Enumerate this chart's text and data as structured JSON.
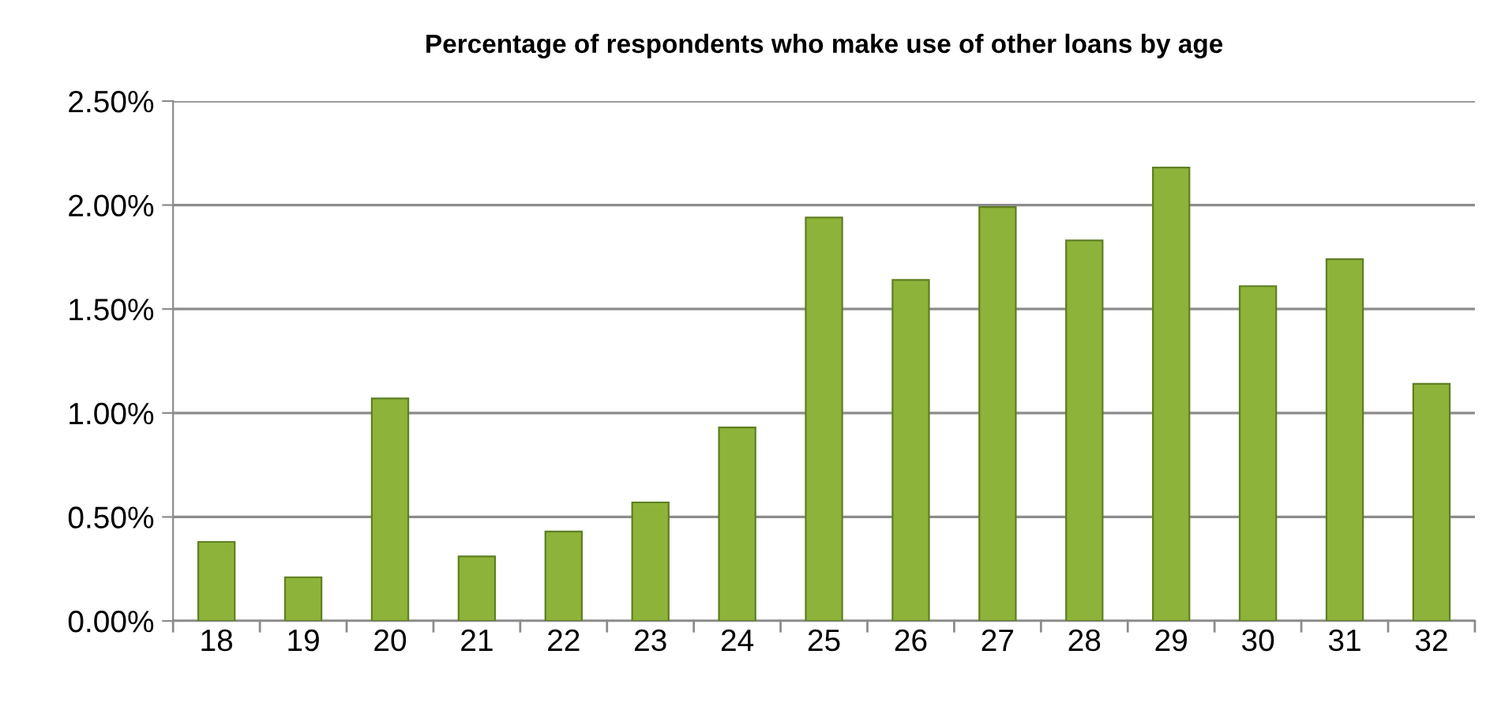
{
  "chart_data": {
    "type": "bar",
    "title": "Percentage of respondents who make use of other loans by age",
    "categories": [
      "18",
      "19",
      "20",
      "21",
      "22",
      "23",
      "24",
      "25",
      "26",
      "27",
      "28",
      "29",
      "30",
      "31",
      "32"
    ],
    "values": [
      0.38,
      0.21,
      1.07,
      0.31,
      0.43,
      0.57,
      0.93,
      1.94,
      1.64,
      1.99,
      1.83,
      2.18,
      1.61,
      1.74,
      1.14
    ],
    "color": "#8db33a",
    "ylim": [
      0,
      2.5
    ],
    "yticks": [
      {
        "value": 0,
        "label": "0.00%"
      },
      {
        "value": 0.5,
        "label": "0.50%"
      },
      {
        "value": 1,
        "label": "1.00%"
      },
      {
        "value": 1.5,
        "label": "1.50%"
      },
      {
        "value": 2,
        "label": "2.00%"
      },
      {
        "value": 2.5,
        "label": "2.50%"
      }
    ],
    "grid": "y"
  }
}
